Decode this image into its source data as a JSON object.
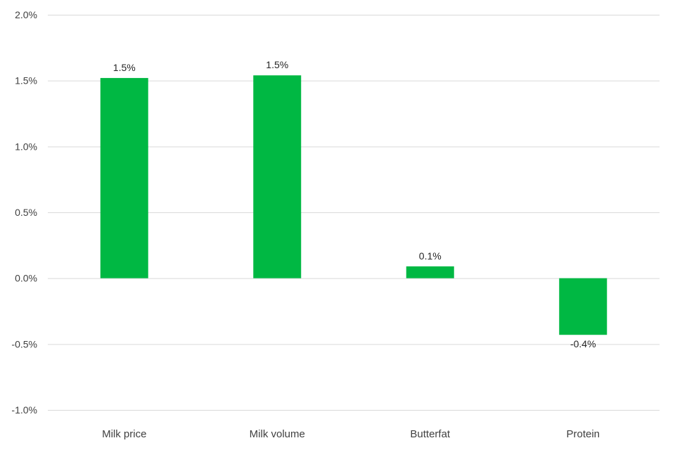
{
  "chart_data": {
    "type": "bar",
    "title": "",
    "xlabel": "",
    "ylabel": "",
    "categories": [
      "Milk price",
      "Milk volume",
      "Butterfat",
      "Protein"
    ],
    "values": [
      1.52,
      1.54,
      0.09,
      -0.43
    ],
    "data_labels": [
      "1.5%",
      "1.5%",
      "0.1%",
      "-0.4%"
    ],
    "ylim": [
      -1.0,
      2.0
    ],
    "yticks": [
      2.0,
      1.5,
      1.0,
      0.5,
      0.0,
      -0.5,
      -1.0
    ],
    "ytick_labels": [
      "2.0%",
      "1.5%",
      "1.0%",
      "0.5%",
      "0.0%",
      "-0.5%",
      "-1.0%"
    ],
    "bar_color": "#00b843",
    "grid": true,
    "legend": "none"
  }
}
